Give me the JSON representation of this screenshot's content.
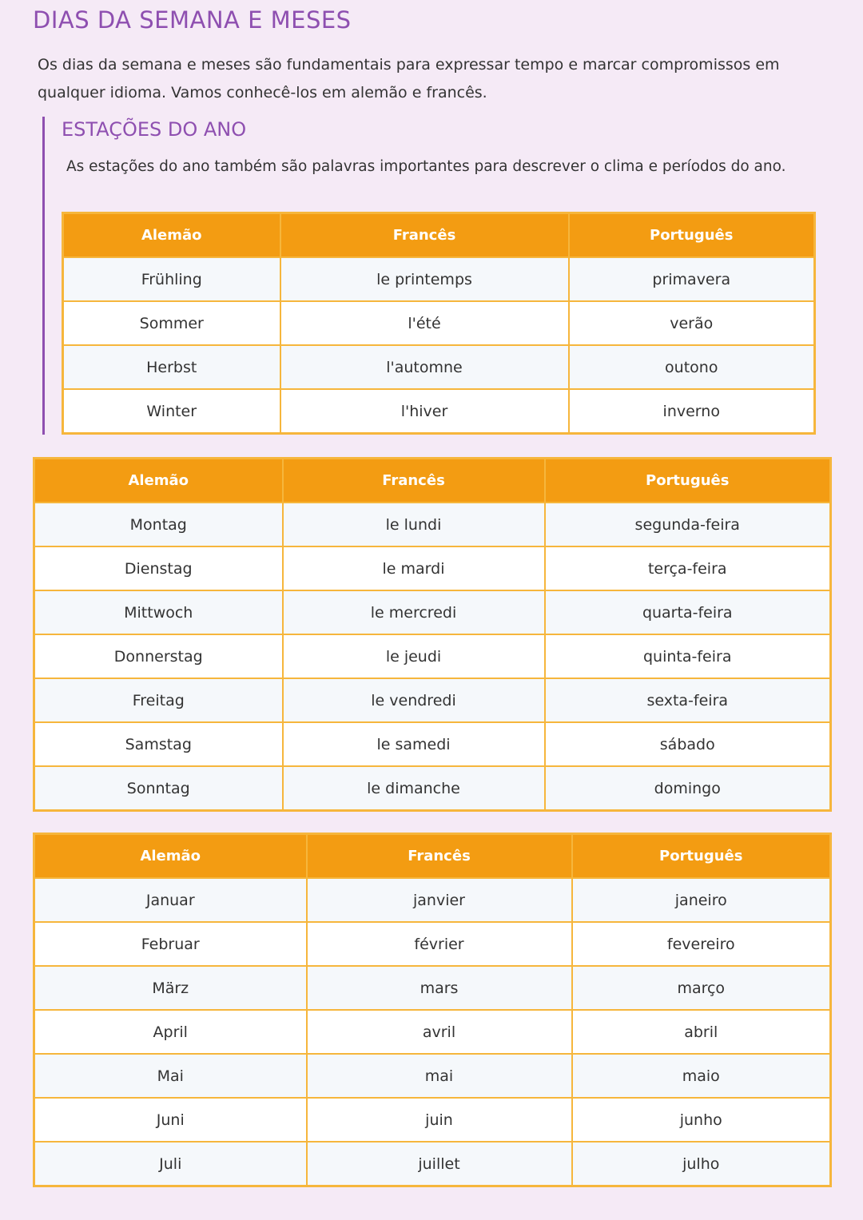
{
  "title": "DIAS DA SEMANA E MESES",
  "intro": "Os dias da semana e meses são fundamentais para expressar tempo e marcar compromissos em qualquer idioma. Vamos conhecê-los em alemão e francês.",
  "seasons": {
    "heading": "ESTAÇÕES DO ANO",
    "text": "As estações do ano também são palavras importantes para descrever o clima e períodos do ano.",
    "headers": [
      "Alemão",
      "Francês",
      "Português"
    ],
    "rows": [
      [
        "Frühling",
        "le printemps",
        "primavera"
      ],
      [
        "Sommer",
        "l'été",
        "verão"
      ],
      [
        "Herbst",
        "l'automne",
        "outono"
      ],
      [
        "Winter",
        "l'hiver",
        "inverno"
      ]
    ]
  },
  "days": {
    "headers": [
      "Alemão",
      "Francês",
      "Português"
    ],
    "rows": [
      [
        "Montag",
        "le lundi",
        "segunda-feira"
      ],
      [
        "Dienstag",
        "le mardi",
        "terça-feira"
      ],
      [
        "Mittwoch",
        "le mercredi",
        "quarta-feira"
      ],
      [
        "Donnerstag",
        "le jeudi",
        "quinta-feira"
      ],
      [
        "Freitag",
        "le vendredi",
        "sexta-feira"
      ],
      [
        "Samstag",
        "le samedi",
        "sábado"
      ],
      [
        "Sonntag",
        "le dimanche",
        "domingo"
      ]
    ]
  },
  "months": {
    "headers": [
      "Alemão",
      "Francês",
      "Português"
    ],
    "rows": [
      [
        "Januar",
        "janvier",
        "janeiro"
      ],
      [
        "Februar",
        "février",
        "fevereiro"
      ],
      [
        "März",
        "mars",
        "março"
      ],
      [
        "April",
        "avril",
        "abril"
      ],
      [
        "Mai",
        "mai",
        "maio"
      ],
      [
        "Juni",
        "juin",
        "junho"
      ],
      [
        "Juli",
        "juillet",
        "julho"
      ]
    ]
  },
  "colors": {
    "accent": "#8e4fb0",
    "header": "#f39c12",
    "border": "#f6b63c",
    "background": "#f5eaf6"
  }
}
